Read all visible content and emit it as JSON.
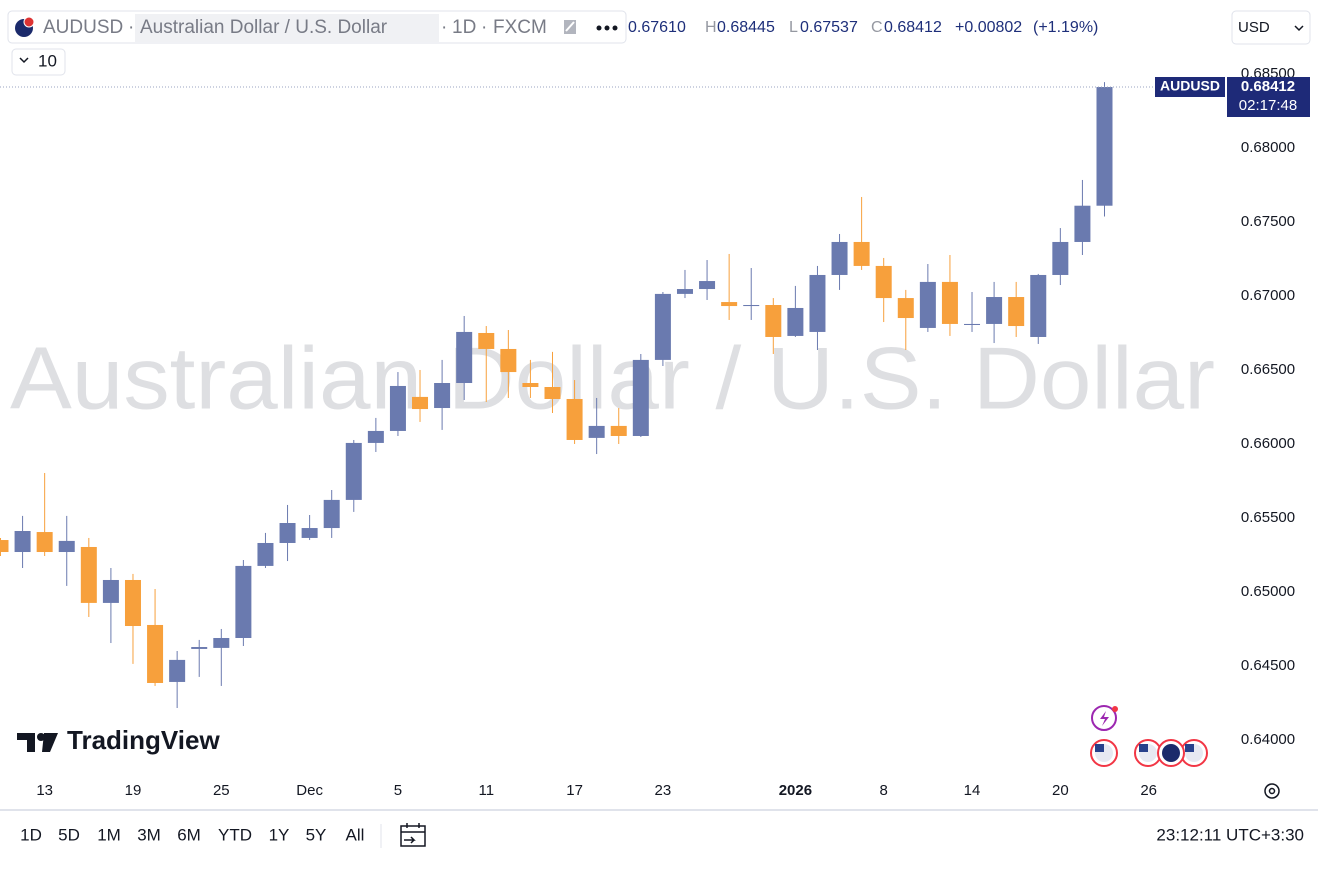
{
  "header": {
    "symbol": "AUDUSD",
    "description": "Australian Dollar / U.S. Dollar",
    "interval": "1D",
    "exchange": "FXCM",
    "open": "0.67610",
    "high_label": "H",
    "high": "0.68445",
    "low_label": "L",
    "low": "0.67537",
    "close_label": "C",
    "close": "0.68412",
    "change": "+0.00802",
    "change_pct": "(+1.19%)",
    "indicator_count": "10",
    "currency": "USD"
  },
  "price_label": {
    "symbol": "AUDUSD",
    "countdown": "02:17:48"
  },
  "watermark": "Australian Dollar / U.S. Dollar",
  "logo": "TradingView",
  "toolbar": {
    "ranges": [
      "1D",
      "5D",
      "1M",
      "3M",
      "6M",
      "YTD",
      "1Y",
      "5Y",
      "All"
    ],
    "clock": "23:12:11 UTC+3:30"
  },
  "chart_data": {
    "type": "candlestick",
    "categories": [
      null,
      null,
      "13",
      null,
      null,
      null,
      "19",
      null,
      null,
      null,
      "25",
      null,
      null,
      null,
      "Dec",
      null,
      null,
      null,
      "5",
      null,
      null,
      null,
      "11",
      null,
      null,
      null,
      "17",
      null,
      null,
      null,
      "23",
      null,
      null,
      null,
      null,
      null,
      "2026",
      null,
      null,
      null,
      "8",
      null,
      null,
      null,
      "14",
      null,
      null,
      null,
      "20",
      null,
      null,
      null,
      "26"
    ],
    "open": [
      0.65351,
      0.6527,
      0.65405,
      0.6527,
      0.65304,
      0.64926,
      0.65081,
      0.64777,
      0.64392,
      0.64615,
      0.64622,
      0.64689,
      0.65176,
      0.65331,
      0.65365,
      0.65432,
      0.65622,
      0.66007,
      0.66088,
      0.66318,
      0.66243,
      0.66412,
      0.6675,
      0.66642,
      0.66412,
      0.66385,
      0.66304,
      0.66041,
      0.66122,
      0.66054,
      0.66568,
      0.67014,
      0.67047,
      0.66959,
      0.66932,
      0.66939,
      0.6673,
      0.66757,
      0.67142,
      0.67365,
      0.67203,
      0.66986,
      0.66784,
      0.67095,
      0.66804,
      0.66811,
      0.66993,
      0.66723,
      0.67142,
      0.67365,
      0.6761,
      null,
      null
    ],
    "high": [
      0.65365,
      0.65514,
      0.65804,
      0.65514,
      0.65365,
      0.65162,
      0.65122,
      0.6502,
      0.64601,
      0.64676,
      0.6475,
      0.65216,
      0.65399,
      0.65588,
      0.6552,
      0.65689,
      0.66027,
      0.66176,
      0.66486,
      0.665,
      0.66568,
      0.66865,
      0.66797,
      0.6677,
      0.66568,
      0.66622,
      0.66432,
      0.66311,
      0.66243,
      0.66608,
      0.67027,
      0.67176,
      0.67243,
      0.67284,
      0.67189,
      0.66986,
      0.67068,
      0.67203,
      0.67419,
      0.67669,
      0.67257,
      0.67041,
      0.67216,
      0.67277,
      0.67027,
      0.67095,
      0.67095,
      0.67149,
      0.67459,
      0.67784,
      0.68445,
      null,
      null
    ],
    "low": [
      0.65243,
      0.65162,
      0.65243,
      0.65041,
      0.64831,
      0.64655,
      0.64514,
      0.64365,
      0.64216,
      0.64426,
      0.64365,
      0.64635,
      0.65162,
      0.65209,
      0.65351,
      0.65365,
      0.65541,
      0.65946,
      0.66054,
      0.66149,
      0.66095,
      0.66297,
      0.66284,
      0.66311,
      0.66311,
      0.66209,
      0.66,
      0.65932,
      0.66,
      0.66047,
      0.66527,
      0.66986,
      0.66973,
      0.66838,
      0.66838,
      0.66608,
      0.66723,
      0.66635,
      0.67041,
      0.67176,
      0.66824,
      0.66635,
      0.66757,
      0.6673,
      0.66757,
      0.66682,
      0.66723,
      0.66676,
      0.67074,
      0.67277,
      0.67537,
      null,
      null
    ],
    "close": [
      0.6527,
      0.65412,
      0.6527,
      0.65345,
      0.64926,
      0.65081,
      0.6477,
      0.64385,
      0.64541,
      0.64628,
      0.64689,
      0.65176,
      0.65331,
      0.65466,
      0.65432,
      0.65622,
      0.66007,
      0.66088,
      0.66392,
      0.66236,
      0.66412,
      0.66757,
      0.66642,
      0.66486,
      0.66385,
      0.66304,
      0.66027,
      0.66122,
      0.66054,
      0.66568,
      0.67014,
      0.67047,
      0.67101,
      0.66932,
      0.66939,
      0.66723,
      0.66919,
      0.67142,
      0.67365,
      0.67203,
      0.66986,
      0.66851,
      0.67095,
      0.66811,
      0.66811,
      0.66993,
      0.66797,
      0.67142,
      0.67365,
      0.6761,
      0.68412,
      null,
      null
    ],
    "up_color": "#6a7aaf",
    "down_color": "#f7a03c",
    "ylim": [
      0.6377,
      0.69
    ],
    "yticks": [
      {
        "value": 0.64,
        "label": "0.64000"
      },
      {
        "value": 0.645,
        "label": "0.64500"
      },
      {
        "value": 0.65,
        "label": "0.65000"
      },
      {
        "value": 0.655,
        "label": "0.65500"
      },
      {
        "value": 0.66,
        "label": "0.66000"
      },
      {
        "value": 0.665,
        "label": "0.66500"
      },
      {
        "value": 0.67,
        "label": "0.67000"
      },
      {
        "value": 0.675,
        "label": "0.67500"
      },
      {
        "value": 0.68,
        "label": "0.68000"
      },
      {
        "value": 0.685,
        "label": "0.68500"
      }
    ],
    "grid": false
  }
}
